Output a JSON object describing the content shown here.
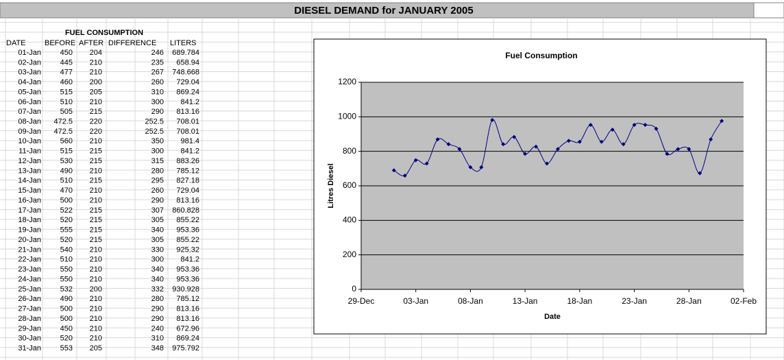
{
  "header": {
    "title": "DIESEL DEMAND for JANUARY 2005"
  },
  "table": {
    "caption": "FUEL CONSUMPTION",
    "columns": [
      "DATE",
      "BEFORE",
      "AFTER",
      "DIFFERENCE",
      "LITERS"
    ],
    "rows": [
      [
        "01-Jan",
        450,
        204,
        246,
        689.784
      ],
      [
        "02-Jan",
        445,
        210,
        235,
        658.94
      ],
      [
        "03-Jan",
        477,
        210,
        267,
        748.668
      ],
      [
        "04-Jan",
        460,
        200,
        260,
        729.04
      ],
      [
        "05-Jan",
        515,
        205,
        310,
        869.24
      ],
      [
        "06-Jan",
        510,
        210,
        300,
        841.2
      ],
      [
        "07-Jan",
        505,
        215,
        290,
        813.16
      ],
      [
        "08-Jan",
        472.5,
        220,
        252.5,
        708.01
      ],
      [
        "09-Jan",
        472.5,
        220,
        252.5,
        708.01
      ],
      [
        "10-Jan",
        560,
        210,
        350,
        981.4
      ],
      [
        "11-Jan",
        515,
        215,
        300,
        841.2
      ],
      [
        "12-Jan",
        530,
        215,
        315,
        883.26
      ],
      [
        "13-Jan",
        490,
        210,
        280,
        785.12
      ],
      [
        "14-Jan",
        510,
        215,
        295,
        827.18
      ],
      [
        "15-Jan",
        470,
        210,
        260,
        729.04
      ],
      [
        "16-Jan",
        500,
        210,
        290,
        813.16
      ],
      [
        "17-Jan",
        522,
        215,
        307,
        860.828
      ],
      [
        "18-Jan",
        520,
        215,
        305,
        855.22
      ],
      [
        "19-Jan",
        555,
        215,
        340,
        953.36
      ],
      [
        "20-Jan",
        520,
        215,
        305,
        855.22
      ],
      [
        "21-Jan",
        540,
        210,
        330,
        925.32
      ],
      [
        "22-Jan",
        510,
        210,
        300,
        841.2
      ],
      [
        "23-Jan",
        550,
        210,
        340,
        953.36
      ],
      [
        "24-Jan",
        550,
        210,
        340,
        953.36
      ],
      [
        "25-Jan",
        532,
        200,
        332,
        930.928
      ],
      [
        "26-Jan",
        490,
        210,
        280,
        785.12
      ],
      [
        "27-Jan",
        500,
        210,
        290,
        813.16
      ],
      [
        "28-Jan",
        500,
        210,
        290,
        813.16
      ],
      [
        "29-Jan",
        450,
        210,
        240,
        672.96
      ],
      [
        "30-Jan",
        520,
        210,
        310,
        869.24
      ],
      [
        "31-Jan",
        553,
        205,
        348,
        975.792
      ]
    ]
  },
  "chart_data": {
    "type": "line",
    "title": "Fuel Consumption",
    "x_label": "Date",
    "y_label": "Litres Diesel",
    "x": [
      1,
      2,
      3,
      4,
      5,
      6,
      7,
      8,
      9,
      10,
      11,
      12,
      13,
      14,
      15,
      16,
      17,
      18,
      19,
      20,
      21,
      22,
      23,
      24,
      25,
      26,
      27,
      28,
      29,
      30,
      31
    ],
    "values": [
      689.784,
      658.94,
      748.668,
      729.04,
      869.24,
      841.2,
      813.16,
      708.01,
      708.01,
      981.4,
      841.2,
      883.26,
      785.12,
      827.18,
      729.04,
      813.16,
      860.828,
      855.22,
      953.36,
      855.22,
      925.32,
      841.2,
      953.36,
      953.36,
      930.928,
      785.12,
      813.16,
      813.16,
      672.96,
      869.24,
      975.792
    ],
    "color": "#000080",
    "smooth": true,
    "grid": true,
    "xlim": [
      -2,
      33
    ],
    "xticks": [
      {
        "value": -2,
        "label": "29-Dec"
      },
      {
        "value": 3,
        "label": "03-Jan"
      },
      {
        "value": 8,
        "label": "08-Jan"
      },
      {
        "value": 13,
        "label": "13-Jan"
      },
      {
        "value": 18,
        "label": "18-Jan"
      },
      {
        "value": 23,
        "label": "23-Jan"
      },
      {
        "value": 28,
        "label": "28-Jan"
      },
      {
        "value": 33,
        "label": "02-Feb"
      }
    ],
    "ylim": [
      0,
      1200
    ],
    "yticks": [
      0,
      200,
      400,
      600,
      800,
      1000,
      1200
    ]
  }
}
